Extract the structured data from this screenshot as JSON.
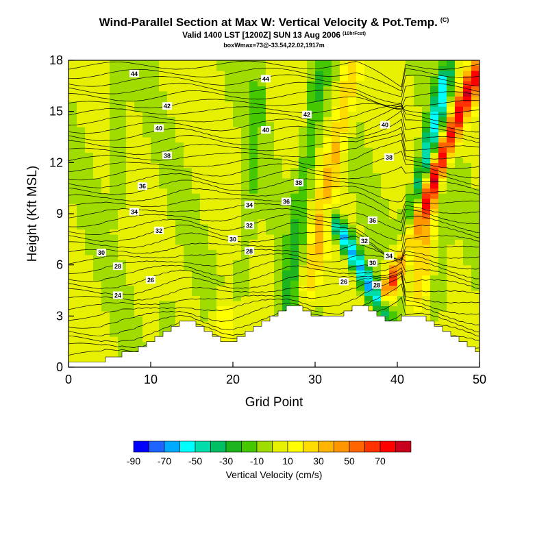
{
  "header": {
    "title": "Wind-Parallel Section at Max W: Vertical Velocity & Pot.Temp.",
    "title_mark": "(C)",
    "valid": "Valid 1400 LST [1200Z] SUN 13 Aug 2006",
    "valid_note": "(10hrFcst)",
    "box_info": "boxWmax=73@-33.54,22.02,1917m"
  },
  "chart_data": {
    "type": "heatmap",
    "xlabel": "Grid Point",
    "ylabel": "Height (Kft MSL)",
    "xlim": [
      0,
      50
    ],
    "ylim": [
      0,
      18
    ],
    "x_ticks": [
      0,
      10,
      20,
      30,
      40,
      50
    ],
    "y_ticks": [
      0,
      3,
      6,
      9,
      12,
      15,
      18
    ],
    "colorbar": {
      "title": "Vertical Velocity (cm/s)",
      "tick_labels": [
        "-90",
        "-70",
        "-50",
        "-30",
        "-10",
        "10",
        "30",
        "50",
        "70"
      ],
      "bin_edges": [
        -90,
        -80,
        -70,
        -60,
        -50,
        -40,
        -30,
        -20,
        -10,
        0,
        10,
        20,
        30,
        40,
        50,
        60,
        70,
        80
      ],
      "colors": [
        "#0000ff",
        "#1e64ff",
        "#00aaff",
        "#00ffff",
        "#00dcaa",
        "#00be64",
        "#1eb41e",
        "#46c800",
        "#a0dc00",
        "#e6f000",
        "#ffff00",
        "#ffdc00",
        "#ffb400",
        "#ff9600",
        "#ff6400",
        "#ff3200",
        "#ff0000",
        "#c8001e"
      ]
    },
    "terrain_kft": [
      0.3,
      0.3,
      0.3,
      0.3,
      0.3,
      0.6,
      0.6,
      0.9,
      0.9,
      1.2,
      1.5,
      1.8,
      2.1,
      2.4,
      2.7,
      2.7,
      2.4,
      2.1,
      1.8,
      1.5,
      1.5,
      1.8,
      2.1,
      2.4,
      2.7,
      3.0,
      3.3,
      3.6,
      3.6,
      3.3,
      3.0,
      3.0,
      3.0,
      3.0,
      3.3,
      3.6,
      3.6,
      3.3,
      3.0,
      2.7,
      2.7,
      3.0,
      3.0,
      3.0,
      2.7,
      2.4,
      2.1,
      1.8,
      1.5,
      1.2,
      0.9
    ],
    "vertical_velocity_features": [
      {
        "x": 26,
        "bottom_kft": 2,
        "top_kft": 18,
        "w_cm_s": -25,
        "lean": 0.9
      },
      {
        "x": 29,
        "bottom_kft": 4,
        "top_kft": 18,
        "w_cm_s": 30,
        "lean": 1.2
      },
      {
        "x": 38.5,
        "bottom_kft": 4,
        "top_kft": 18,
        "w_cm_s": 73,
        "lean": 2.5
      },
      {
        "x": 38.5,
        "bottom_kft": 3,
        "top_kft": 9,
        "w_cm_s": -70,
        "lean": -3.2
      },
      {
        "x": 40.5,
        "bottom_kft": 6,
        "top_kft": 18,
        "w_cm_s": -55,
        "lean": 1.5
      },
      {
        "x": 42,
        "bottom_kft": 3,
        "top_kft": 18,
        "w_cm_s": 22,
        "lean": 1.0
      },
      {
        "x": 45,
        "bottom_kft": 3,
        "top_kft": 18,
        "w_cm_s": -15,
        "lean": 0.2
      },
      {
        "x": 12,
        "bottom_kft": 0,
        "top_kft": 4,
        "w_cm_s": -20,
        "lean": 0
      },
      {
        "x": 19,
        "bottom_kft": 1,
        "top_kft": 4,
        "w_cm_s": 20,
        "lean": 0
      },
      {
        "x": 21,
        "bottom_kft": 4,
        "top_kft": 18,
        "w_cm_s": -14,
        "lean": 0.5
      },
      {
        "x": 6,
        "bottom_kft": 9,
        "top_kft": 18,
        "w_cm_s": -12,
        "lean": 0
      }
    ],
    "theta_contour_labels": [
      {
        "text": "44",
        "x": 8,
        "y": 17.2
      },
      {
        "text": "42",
        "x": 12,
        "y": 15.3
      },
      {
        "text": "40",
        "x": 11,
        "y": 14.0
      },
      {
        "text": "38",
        "x": 12,
        "y": 12.4
      },
      {
        "text": "36",
        "x": 9,
        "y": 10.6
      },
      {
        "text": "34",
        "x": 8,
        "y": 9.1
      },
      {
        "text": "32",
        "x": 11,
        "y": 8.0
      },
      {
        "text": "30",
        "x": 4,
        "y": 6.7
      },
      {
        "text": "28",
        "x": 6,
        "y": 5.9
      },
      {
        "text": "26",
        "x": 10,
        "y": 5.1
      },
      {
        "text": "24",
        "x": 6,
        "y": 4.2
      },
      {
        "text": "44",
        "x": 24,
        "y": 16.9
      },
      {
        "text": "40",
        "x": 24,
        "y": 13.9
      },
      {
        "text": "42",
        "x": 29,
        "y": 14.8
      },
      {
        "text": "38",
        "x": 28,
        "y": 10.8
      },
      {
        "text": "36",
        "x": 26.5,
        "y": 9.7
      },
      {
        "text": "34",
        "x": 22,
        "y": 9.5
      },
      {
        "text": "32",
        "x": 22,
        "y": 8.3
      },
      {
        "text": "30",
        "x": 20,
        "y": 7.5
      },
      {
        "text": "28",
        "x": 22,
        "y": 6.8
      },
      {
        "text": "26",
        "x": 33.5,
        "y": 5.0
      },
      {
        "text": "40",
        "x": 38.5,
        "y": 14.2
      },
      {
        "text": "38",
        "x": 39,
        "y": 12.3
      },
      {
        "text": "36",
        "x": 37,
        "y": 8.6
      },
      {
        "text": "32",
        "x": 36,
        "y": 7.4
      },
      {
        "text": "34",
        "x": 39,
        "y": 6.5
      },
      {
        "text": "30",
        "x": 37,
        "y": 6.1
      },
      {
        "text": "28",
        "x": 37.5,
        "y": 4.8
      }
    ]
  },
  "ui": {
    "ink": "#000000",
    "background": "#ffffff",
    "land": "#ffffff"
  }
}
